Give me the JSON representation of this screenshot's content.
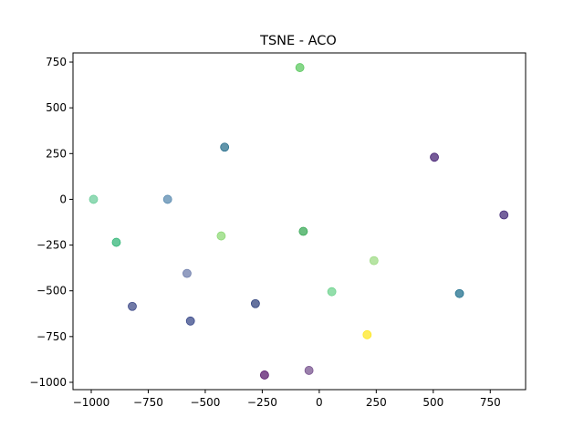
{
  "chart_data": {
    "type": "scatter",
    "title": "TSNE - ACO",
    "xlabel": "",
    "ylabel": "",
    "xlim": [
      -1080,
      905
    ],
    "ylim": [
      -1040,
      800
    ],
    "x_ticks": [
      -1000,
      -750,
      -500,
      -250,
      0,
      250,
      500,
      750
    ],
    "x_tick_labels": [
      "−1000",
      "−750",
      "−500",
      "−250",
      "0",
      "250",
      "500",
      "750"
    ],
    "y_ticks": [
      -1000,
      -750,
      -500,
      -250,
      0,
      250,
      500,
      750
    ],
    "y_tick_labels": [
      "−1000",
      "−750",
      "−500",
      "−250",
      "0",
      "250",
      "500",
      "750"
    ],
    "grid": false,
    "legend": "none",
    "points": [
      {
        "x": -85,
        "y": 720,
        "color": "#5ec962"
      },
      {
        "x": -415,
        "y": 285,
        "color": "#2c728e"
      },
      {
        "x": 505,
        "y": 230,
        "color": "#482475"
      },
      {
        "x": -990,
        "y": 0,
        "color": "#6ece9c"
      },
      {
        "x": -665,
        "y": 0,
        "color": "#5b8bb0"
      },
      {
        "x": 810,
        "y": -85,
        "color": "#472d7b"
      },
      {
        "x": -890,
        "y": -235,
        "color": "#35b779"
      },
      {
        "x": -430,
        "y": -200,
        "color": "#8fd977"
      },
      {
        "x": -70,
        "y": -175,
        "color": "#3aa957"
      },
      {
        "x": 240,
        "y": -335,
        "color": "#9fdb85"
      },
      {
        "x": -580,
        "y": -405,
        "color": "#6f7eac"
      },
      {
        "x": 55,
        "y": -505,
        "color": "#6fd38f"
      },
      {
        "x": 615,
        "y": -515,
        "color": "#21708e"
      },
      {
        "x": -820,
        "y": -585,
        "color": "#414d8a"
      },
      {
        "x": -280,
        "y": -570,
        "color": "#31437e"
      },
      {
        "x": -565,
        "y": -665,
        "color": "#39498a"
      },
      {
        "x": 210,
        "y": -740,
        "color": "#fde725"
      },
      {
        "x": -240,
        "y": -960,
        "color": "#5a1a6e"
      },
      {
        "x": -45,
        "y": -935,
        "color": "#7a5590"
      }
    ]
  }
}
